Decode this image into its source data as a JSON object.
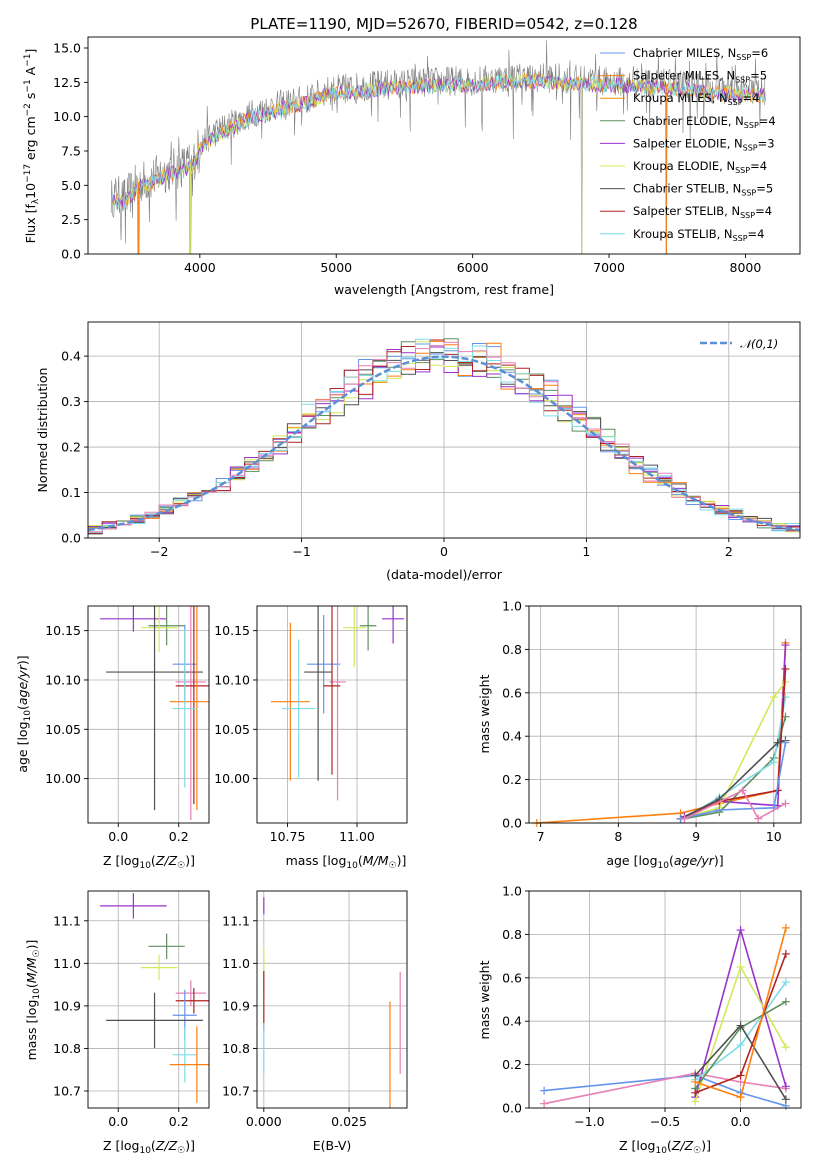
{
  "colors": {
    "Chabrier MILES": "#6495ed",
    "Salpeter MILES": "#ff7f0e",
    "Kroupa MILES": "#ff8c00",
    "Chabrier ELODIE": "#5f8f5f",
    "Salpeter ELODIE": "#9932cc",
    "Kroupa ELODIE": "#d4e85a",
    "Chabrier STELIB": "#505050",
    "Salpeter STELIB": "#b22222",
    "Kroupa STELIB": "#7fdbe6",
    "normal": "#5b8fd6",
    "pink": "#e87fb5"
  },
  "chart_data": [
    {
      "id": "spectrum",
      "type": "line",
      "title": "PLATE=1190, MJD=52670, FIBERID=0542, z=0.128",
      "xlabel": "wavelength [Angstrom, rest frame]",
      "ylabel": "Flux [f_λ 10^-17 erg cm^-2 s^-1 A^-1]",
      "xlim": [
        3180,
        8400
      ],
      "ylim": [
        0,
        15.8
      ],
      "xticks": [
        "4000",
        "5000",
        "6000",
        "7000",
        "8000"
      ],
      "yticks": [
        "0.0",
        "2.5",
        "5.0",
        "7.5",
        "10.0",
        "12.5",
        "15.0"
      ],
      "legend_position": "right",
      "legend": [
        "Chabrier MILES, N",
        "Salpeter MILES, N",
        "Kroupa MILES, N",
        "Chabrier ELODIE, N",
        "Salpeter ELODIE, N",
        "Kroupa ELODIE, N",
        "Chabrier STELIB, N",
        "Salpeter STELIB, N",
        "Kroupa STELIB, N"
      ],
      "legend_sub": "SSP",
      "legend_nssp": [
        "6",
        "5",
        "4",
        "4",
        "3",
        "4",
        "5",
        "4",
        "4"
      ],
      "continuum": {
        "x": [
          3350,
          3450,
          3550,
          3650,
          3750,
          3850,
          3950,
          4000,
          4100,
          4200,
          4300,
          4400,
          4500,
          4600,
          4700,
          4800,
          4900,
          5000,
          5200,
          5400,
          5600,
          5800,
          6000,
          6200,
          6400,
          6600,
          6800,
          7000,
          7200,
          7400,
          7600,
          7800,
          8000,
          8150
        ],
        "y": [
          4.3,
          4.0,
          5.2,
          5.5,
          6.0,
          6.3,
          6.7,
          8.0,
          8.8,
          9.3,
          9.8,
          10.3,
          10.6,
          10.9,
          11.1,
          11.3,
          11.8,
          12.0,
          12.2,
          12.4,
          12.5,
          12.6,
          12.6,
          12.8,
          12.9,
          12.8,
          12.7,
          12.6,
          12.5,
          12.4,
          12.2,
          12.0,
          11.9,
          11.8
        ]
      },
      "dips": [
        {
          "x": 3550,
          "y": 0
        },
        {
          "x": 3930,
          "y": 0
        },
        {
          "x": 6800,
          "y": 0
        },
        {
          "x": 7420,
          "y": 0
        }
      ]
    },
    {
      "id": "residuals",
      "type": "histogram",
      "xlabel": "(data-model)/error",
      "ylabel": "Normed distribution",
      "xlim": [
        -2.5,
        2.5
      ],
      "ylim": [
        0,
        0.475
      ],
      "xticks": [
        "−2",
        "−1",
        "0",
        "1",
        "2"
      ],
      "yticks": [
        "0.0",
        "0.1",
        "0.2",
        "0.3",
        "0.4"
      ],
      "legend": "𝒩(0,1)",
      "legend_position": "top-right",
      "bin_width": 0.1
    },
    {
      "id": "age-vs-Z",
      "type": "errorbar",
      "xlabel": "Z [log10(Z/Z☉)]",
      "ylabel": "age  [log10(age/yr)]",
      "xlim": [
        -0.1,
        0.3
      ],
      "ylim": [
        9.955,
        10.175
      ],
      "xticks": [
        "0.0",
        "0.2"
      ],
      "yticks": [
        "10.00",
        "10.05",
        "10.10",
        "10.15"
      ],
      "points": [
        {
          "s": "Salpeter ELODIE",
          "x": 0.05,
          "xe": 0.11,
          "y": 10.162,
          "ye": 0.013
        },
        {
          "s": "Chabrier ELODIE",
          "x": 0.16,
          "xe": 0.06,
          "y": 10.155,
          "ye": 0.02
        },
        {
          "s": "Kroupa ELODIE",
          "x": 0.135,
          "xe": 0.06,
          "y": 10.153,
          "ye": 0.025
        },
        {
          "s": "Chabrier MILES",
          "x": 0.22,
          "xe": 0.04,
          "y": 10.116,
          "ye": 0.04
        },
        {
          "s": "Chabrier STELIB",
          "x": 0.12,
          "xe": 0.16,
          "y": 10.108,
          "ye": 0.14
        },
        {
          "s": "pink",
          "x": 0.24,
          "xe": 0.05,
          "y": 10.098,
          "ye": 0.14
        },
        {
          "s": "Salpeter STELIB",
          "x": 0.25,
          "xe": 0.06,
          "y": 10.094,
          "ye": 0.12
        },
        {
          "s": "Salpeter MILES",
          "x": 0.26,
          "xe": 0.09,
          "y": 10.078,
          "ye": 0.11
        },
        {
          "s": "Kroupa STELIB",
          "x": 0.22,
          "xe": 0.04,
          "y": 10.071,
          "ye": 0.08
        }
      ]
    },
    {
      "id": "age-vs-mass",
      "type": "errorbar",
      "xlabel": "mass [log10(M/M☉)]",
      "ylabel": "",
      "xlim": [
        10.64,
        11.18
      ],
      "ylim": [
        9.955,
        10.175
      ],
      "xticks": [
        "10.75",
        "11.00"
      ],
      "yticks": [
        "10.00",
        "10.05",
        "10.10",
        "10.15"
      ],
      "points": [
        {
          "s": "Salpeter ELODIE",
          "x": 11.13,
          "xe": 0.04,
          "y": 10.162,
          "ye": 0.025
        },
        {
          "s": "Chabrier ELODIE",
          "x": 11.04,
          "xe": 0.03,
          "y": 10.155,
          "ye": 0.025
        },
        {
          "s": "Kroupa ELODIE",
          "x": 10.99,
          "xe": 0.04,
          "y": 10.153,
          "ye": 0.04
        },
        {
          "s": "Chabrier MILES",
          "x": 10.88,
          "xe": 0.06,
          "y": 10.116,
          "ye": 0.05
        },
        {
          "s": "Chabrier STELIB",
          "x": 10.86,
          "xe": 0.05,
          "y": 10.108,
          "ye": 0.11
        },
        {
          "s": "pink",
          "x": 10.93,
          "xe": 0.03,
          "y": 10.098,
          "ye": 0.12
        },
        {
          "s": "Salpeter STELIB",
          "x": 10.91,
          "xe": 0.03,
          "y": 10.094,
          "ye": 0.09
        },
        {
          "s": "Salpeter MILES",
          "x": 10.76,
          "xe": 0.07,
          "y": 10.078,
          "ye": 0.08
        },
        {
          "s": "Kroupa STELIB",
          "x": 10.79,
          "xe": 0.06,
          "y": 10.071,
          "ye": 0.07
        }
      ]
    },
    {
      "id": "weight-vs-age",
      "type": "line",
      "xlabel": "age  [log10(age/yr)]",
      "ylabel": "mass weight",
      "xlim": [
        6.85,
        10.35
      ],
      "ylim": [
        0,
        1
      ],
      "xticks": [
        "7",
        "8",
        "9",
        "10"
      ],
      "yticks": [
        "0.0",
        "0.2",
        "0.4",
        "0.6",
        "0.8",
        "1.0"
      ],
      "series": [
        {
          "s": "Salpeter MILES",
          "x": [
            6.95,
            8.8,
            9.3,
            10.05,
            10.15
          ],
          "y": [
            0.0,
            0.045,
            0.09,
            0.15,
            0.83
          ]
        },
        {
          "s": "Salpeter ELODIE",
          "x": [
            8.85,
            9.3,
            10.05,
            10.15
          ],
          "y": [
            0.03,
            0.1,
            0.08,
            0.82
          ]
        },
        {
          "s": "Kroupa ELODIE",
          "x": [
            8.8,
            9.3,
            10.0,
            10.15
          ],
          "y": [
            0.02,
            0.07,
            0.58,
            0.65
          ]
        },
        {
          "s": "Chabrier ELODIE",
          "x": [
            8.85,
            9.3,
            10.0,
            10.15
          ],
          "y": [
            0.02,
            0.05,
            0.3,
            0.49
          ]
        },
        {
          "s": "Kroupa STELIB",
          "x": [
            8.85,
            9.3,
            10.0,
            10.15
          ],
          "y": [
            0.02,
            0.12,
            0.28,
            0.58
          ]
        },
        {
          "s": "Salpeter STELIB",
          "x": [
            8.8,
            9.3,
            10.05,
            10.15
          ],
          "y": [
            0.02,
            0.1,
            0.15,
            0.71
          ]
        },
        {
          "s": "Chabrier STELIB",
          "x": [
            8.8,
            9.3,
            10.05,
            10.15
          ],
          "y": [
            0.02,
            0.11,
            0.37,
            0.38
          ]
        },
        {
          "s": "Chabrier MILES",
          "x": [
            8.8,
            9.3,
            10.0,
            10.15
          ],
          "y": [
            0.02,
            0.06,
            0.07,
            0.37
          ]
        },
        {
          "s": "pink",
          "x": [
            8.85,
            9.6,
            9.8,
            10.15
          ],
          "y": [
            0.02,
            0.15,
            0.02,
            0.09
          ]
        }
      ]
    },
    {
      "id": "mass-vs-Z",
      "type": "errorbar",
      "xlabel": "Z [log10(Z/Z☉)]",
      "ylabel": "mass [log10(M/M☉)]",
      "xlim": [
        -0.1,
        0.3
      ],
      "ylim": [
        10.66,
        11.17
      ],
      "xticks": [
        "0.0",
        "0.2"
      ],
      "yticks": [
        "10.7",
        "10.8",
        "10.9",
        "11.0",
        "11.1"
      ],
      "points": [
        {
          "s": "Salpeter ELODIE",
          "x": 0.05,
          "xe": 0.11,
          "y": 11.135,
          "ye": 0.03
        },
        {
          "s": "Chabrier ELODIE",
          "x": 0.16,
          "xe": 0.06,
          "y": 11.04,
          "ye": 0.03
        },
        {
          "s": "Kroupa ELODIE",
          "x": 0.135,
          "xe": 0.06,
          "y": 10.99,
          "ye": 0.03
        },
        {
          "s": "pink",
          "x": 0.24,
          "xe": 0.05,
          "y": 10.93,
          "ye": 0.03
        },
        {
          "s": "Salpeter STELIB",
          "x": 0.25,
          "xe": 0.06,
          "y": 10.912,
          "ye": 0.03
        },
        {
          "s": "Chabrier MILES",
          "x": 0.22,
          "xe": 0.04,
          "y": 10.878,
          "ye": 0.06
        },
        {
          "s": "Chabrier STELIB",
          "x": 0.12,
          "xe": 0.16,
          "y": 10.866,
          "ye": 0.065
        },
        {
          "s": "Kroupa STELIB",
          "x": 0.22,
          "xe": 0.04,
          "y": 10.785,
          "ye": 0.065
        },
        {
          "s": "Salpeter MILES",
          "x": 0.26,
          "xe": 0.09,
          "y": 10.762,
          "ye": 0.09
        }
      ]
    },
    {
      "id": "mass-vs-EBV",
      "type": "errorbar",
      "xlabel": "E(B-V)",
      "ylabel": "",
      "xlim": [
        -0.002,
        0.042
      ],
      "ylim": [
        10.66,
        11.17
      ],
      "xticks": [
        "0.000",
        "0.025"
      ],
      "yticks": [
        "10.7",
        "10.8",
        "10.9",
        "11.0",
        "11.1"
      ],
      "points": [
        {
          "s": "Salpeter ELODIE",
          "x": 0.0,
          "xe": 0,
          "y": 11.135,
          "ye": 0.02
        },
        {
          "s": "Kroupa ELODIE",
          "x": 0.0,
          "xe": 0,
          "y": 10.99,
          "ye": 0.05
        },
        {
          "s": "Salpeter STELIB",
          "x": 0.0,
          "xe": 0,
          "y": 10.912,
          "ye": 0.07
        },
        {
          "s": "Kroupa STELIB",
          "x": 0.0,
          "xe": 0,
          "y": 10.8,
          "ye": 0.06
        },
        {
          "s": "Salpeter MILES",
          "x": 0.037,
          "xe": 0,
          "y": 10.78,
          "ye": 0.13
        },
        {
          "s": "pink",
          "x": 0.04,
          "xe": 0,
          "y": 10.86,
          "ye": 0.12
        }
      ]
    },
    {
      "id": "weight-vs-Z",
      "type": "line",
      "xlabel": "Z [log10(Z/Z☉)]",
      "ylabel": "mass weight",
      "xlim": [
        -1.4,
        0.4
      ],
      "ylim": [
        0,
        1
      ],
      "xticks": [
        "−1.0",
        "−0.5",
        "0.0"
      ],
      "yticks": [
        "0.0",
        "0.2",
        "0.4",
        "0.6",
        "0.8",
        "1.0"
      ],
      "series": [
        {
          "s": "Chabrier MILES",
          "x": [
            -1.3,
            -0.3,
            0.0,
            0.3
          ],
          "y": [
            0.08,
            0.15,
            0.07,
            0.01
          ]
        },
        {
          "s": "pink",
          "x": [
            -1.3,
            -0.3,
            0.0,
            0.3
          ],
          "y": [
            0.02,
            0.16,
            0.12,
            0.09
          ]
        },
        {
          "s": "Salpeter ELODIE",
          "x": [
            -0.3,
            0.0,
            0.3
          ],
          "y": [
            0.05,
            0.82,
            0.1
          ]
        },
        {
          "s": "Kroupa ELODIE",
          "x": [
            -0.3,
            0.0,
            0.3
          ],
          "y": [
            0.03,
            0.65,
            0.28
          ]
        },
        {
          "s": "Kroupa STELIB",
          "x": [
            -0.3,
            0.0,
            0.3
          ],
          "y": [
            0.13,
            0.29,
            0.58
          ]
        },
        {
          "s": "Chabrier ELODIE",
          "x": [
            -0.3,
            0.0,
            0.3
          ],
          "y": [
            0.09,
            0.37,
            0.49
          ]
        },
        {
          "s": "Chabrier STELIB",
          "x": [
            -0.3,
            0.0,
            0.3
          ],
          "y": [
            0.15,
            0.38,
            0.04
          ]
        },
        {
          "s": "Salpeter STELIB",
          "x": [
            -0.3,
            0.0,
            0.3
          ],
          "y": [
            0.07,
            0.15,
            0.71
          ]
        },
        {
          "s": "Salpeter MILES",
          "x": [
            -0.3,
            0.0,
            0.3
          ],
          "y": [
            0.12,
            0.05,
            0.83
          ]
        }
      ]
    }
  ]
}
